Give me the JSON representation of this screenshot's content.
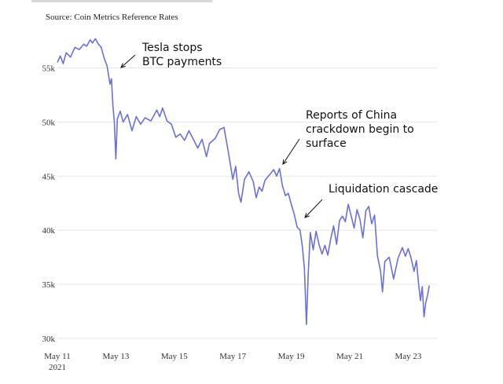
{
  "source": "Source: Coin Metrics Reference Rates",
  "chart_data": {
    "type": "line",
    "title": "",
    "xlabel": "",
    "ylabel": "",
    "ylim": [
      30000,
      58000
    ],
    "yticks": [
      {
        "value": 30000,
        "label": "30k"
      },
      {
        "value": 35000,
        "label": "35k"
      },
      {
        "value": 40000,
        "label": "40k"
      },
      {
        "value": 45000,
        "label": "45k"
      },
      {
        "value": 50000,
        "label": "50k"
      },
      {
        "value": 55000,
        "label": "55k"
      }
    ],
    "xticks": [
      {
        "value": 11,
        "label": "May 11",
        "sublabel": "2021"
      },
      {
        "value": 13,
        "label": "May 13"
      },
      {
        "value": 15,
        "label": "May 15"
      },
      {
        "value": 17,
        "label": "May 17"
      },
      {
        "value": 19,
        "label": "May 19"
      },
      {
        "value": 21,
        "label": "May 21"
      },
      {
        "value": 23,
        "label": "May 23"
      }
    ],
    "xlim": [
      11,
      23.6
    ],
    "grid": "horizontal",
    "line_color": "#6a6fe0",
    "series": [
      {
        "name": "",
        "points": [
          [
            11.0,
            55500
          ],
          [
            11.1,
            56100
          ],
          [
            11.2,
            55400
          ],
          [
            11.3,
            56400
          ],
          [
            11.45,
            56000
          ],
          [
            11.6,
            56900
          ],
          [
            11.75,
            56700
          ],
          [
            11.9,
            57200
          ],
          [
            12.0,
            57000
          ],
          [
            12.12,
            57600
          ],
          [
            12.2,
            57300
          ],
          [
            12.3,
            57700
          ],
          [
            12.4,
            57200
          ],
          [
            12.5,
            56900
          ],
          [
            12.6,
            55900
          ],
          [
            12.7,
            55200
          ],
          [
            12.8,
            53500
          ],
          [
            12.85,
            54000
          ],
          [
            12.9,
            51500
          ],
          [
            12.95,
            50000
          ],
          [
            13.0,
            46600
          ],
          [
            13.05,
            50300
          ],
          [
            13.15,
            51000
          ],
          [
            13.25,
            50000
          ],
          [
            13.4,
            50700
          ],
          [
            13.55,
            49200
          ],
          [
            13.7,
            50500
          ],
          [
            13.85,
            49800
          ],
          [
            14.0,
            50400
          ],
          [
            14.2,
            50100
          ],
          [
            14.4,
            51100
          ],
          [
            14.5,
            50500
          ],
          [
            14.6,
            51300
          ],
          [
            14.75,
            50100
          ],
          [
            14.9,
            49800
          ],
          [
            15.05,
            48600
          ],
          [
            15.2,
            48900
          ],
          [
            15.35,
            48300
          ],
          [
            15.5,
            49200
          ],
          [
            15.65,
            48400
          ],
          [
            15.8,
            47600
          ],
          [
            15.95,
            48400
          ],
          [
            16.1,
            46800
          ],
          [
            16.2,
            48000
          ],
          [
            16.4,
            48500
          ],
          [
            16.55,
            49300
          ],
          [
            16.7,
            49500
          ],
          [
            16.85,
            47200
          ],
          [
            17.0,
            44700
          ],
          [
            17.1,
            45900
          ],
          [
            17.2,
            43400
          ],
          [
            17.28,
            42600
          ],
          [
            17.4,
            44700
          ],
          [
            17.55,
            45400
          ],
          [
            17.7,
            44500
          ],
          [
            17.8,
            43000
          ],
          [
            17.9,
            44000
          ],
          [
            18.0,
            43600
          ],
          [
            18.1,
            44600
          ],
          [
            18.25,
            45100
          ],
          [
            18.4,
            45600
          ],
          [
            18.5,
            45000
          ],
          [
            18.6,
            45700
          ],
          [
            18.7,
            44100
          ],
          [
            18.8,
            43200
          ],
          [
            18.9,
            43400
          ],
          [
            19.0,
            42400
          ],
          [
            19.1,
            41500
          ],
          [
            19.2,
            40300
          ],
          [
            19.3,
            40000
          ],
          [
            19.38,
            38500
          ],
          [
            19.45,
            36500
          ],
          [
            19.52,
            31300
          ],
          [
            19.58,
            36000
          ],
          [
            19.65,
            39800
          ],
          [
            19.75,
            38200
          ],
          [
            19.85,
            39900
          ],
          [
            19.95,
            38700
          ],
          [
            20.05,
            37800
          ],
          [
            20.15,
            38600
          ],
          [
            20.25,
            37700
          ],
          [
            20.35,
            39200
          ],
          [
            20.45,
            40400
          ],
          [
            20.55,
            38700
          ],
          [
            20.65,
            40900
          ],
          [
            20.75,
            41300
          ],
          [
            20.85,
            40800
          ],
          [
            20.95,
            42400
          ],
          [
            21.05,
            41300
          ],
          [
            21.15,
            40200
          ],
          [
            21.25,
            41900
          ],
          [
            21.35,
            41000
          ],
          [
            21.45,
            39300
          ],
          [
            21.55,
            41800
          ],
          [
            21.65,
            42200
          ],
          [
            21.75,
            40600
          ],
          [
            21.85,
            41400
          ],
          [
            21.95,
            37600
          ],
          [
            22.05,
            36300
          ],
          [
            22.12,
            34300
          ],
          [
            22.2,
            37100
          ],
          [
            22.35,
            37500
          ],
          [
            22.5,
            35500
          ],
          [
            22.65,
            37400
          ],
          [
            22.8,
            38400
          ],
          [
            22.9,
            37600
          ],
          [
            23.0,
            38300
          ],
          [
            23.1,
            37400
          ],
          [
            23.2,
            36200
          ],
          [
            23.28,
            37200
          ],
          [
            23.35,
            35200
          ],
          [
            23.42,
            33500
          ],
          [
            23.48,
            34800
          ],
          [
            23.54,
            32000
          ],
          [
            23.6,
            33300
          ],
          [
            23.66,
            34000
          ],
          [
            23.72,
            34900
          ]
        ]
      }
    ],
    "annotations": [
      {
        "lines": [
          "Tesla stops",
          "BTC payments"
        ],
        "x": 12.85,
        "y": 54800
      },
      {
        "lines": [
          "Reports of China",
          "crackdown begin to",
          "surface"
        ],
        "x": 18.6,
        "y": 46000
      },
      {
        "lines": [
          "Liquidation cascade"
        ],
        "x": 19.45,
        "y": 41200
      }
    ]
  }
}
